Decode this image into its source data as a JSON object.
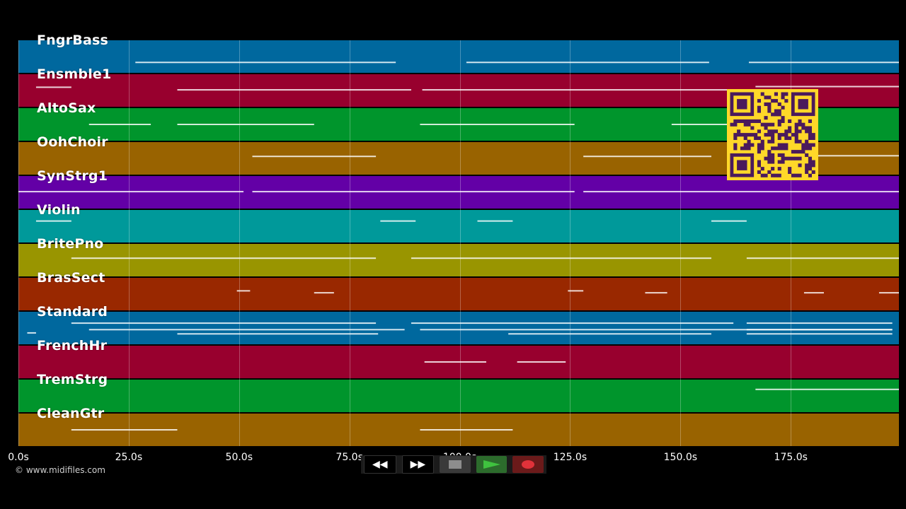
{
  "timeline": {
    "max_seconds": 199.5,
    "ticks": [
      "0.0s",
      "25.0s",
      "50.0s",
      "75.0s",
      "100.0s",
      "125.0s",
      "150.0s",
      "175.0s"
    ],
    "tick_values": [
      0,
      25,
      50,
      75,
      100,
      125,
      150,
      175
    ]
  },
  "tracks": [
    {
      "name": "FngrBass",
      "color": "#00689e"
    },
    {
      "name": "Ensmble1",
      "color": "#98002e"
    },
    {
      "name": "AltoSax",
      "color": "#00952c"
    },
    {
      "name": "OohChoir",
      "color": "#996300"
    },
    {
      "name": "SynStrg1",
      "color": "#6300a6"
    },
    {
      "name": "Violin",
      "color": "#00999a"
    },
    {
      "name": "BritePno",
      "color": "#999500"
    },
    {
      "name": "BrasSect",
      "color": "#992800"
    },
    {
      "name": "Standard",
      "color": "#00689e"
    },
    {
      "name": "FrenchHr",
      "color": "#98002e"
    },
    {
      "name": "TremStrg",
      "color": "#00952c"
    },
    {
      "name": "CleanGtr",
      "color": "#996300"
    }
  ],
  "notes": [
    [
      [
        26.5,
        85.5,
        0.68
      ],
      [
        101.5,
        156.5,
        0.68
      ],
      [
        165.5,
        199.5,
        0.68
      ]
    ],
    [
      [
        4,
        12,
        0.4
      ],
      [
        36,
        89,
        0.48
      ],
      [
        91.5,
        168,
        0.48
      ],
      [
        167,
        199.5,
        0.38
      ]
    ],
    [
      [
        16,
        30,
        0.5
      ],
      [
        36,
        67,
        0.5
      ],
      [
        91,
        126,
        0.5
      ],
      [
        148,
        170,
        0.5
      ]
    ],
    [
      [
        53,
        81,
        0.44
      ],
      [
        128,
        157,
        0.44
      ],
      [
        165,
        199.5,
        0.42
      ]
    ],
    [
      [
        0,
        51,
        0.48
      ],
      [
        53,
        126,
        0.48
      ],
      [
        128,
        199.5,
        0.48
      ]
    ],
    [
      [
        4,
        12,
        0.34
      ],
      [
        82,
        90,
        0.34
      ],
      [
        104,
        112,
        0.34
      ],
      [
        157,
        165,
        0.34
      ]
    ],
    [
      [
        12,
        81,
        0.44
      ],
      [
        89,
        157,
        0.44
      ],
      [
        165,
        199.5,
        0.44
      ]
    ],
    [
      [
        49.5,
        52.5,
        0.4
      ],
      [
        67,
        71.5,
        0.46
      ],
      [
        124.5,
        128,
        0.4
      ],
      [
        142,
        147,
        0.46
      ],
      [
        178,
        182.5,
        0.46
      ],
      [
        195,
        199.5,
        0.46
      ]
    ],
    [
      [
        2,
        4,
        0.65
      ],
      [
        12,
        81,
        0.35
      ],
      [
        16,
        87.5,
        0.55
      ],
      [
        36,
        81.5,
        0.68
      ],
      [
        89,
        162,
        0.35
      ],
      [
        91,
        198,
        0.55
      ],
      [
        111,
        157,
        0.68
      ],
      [
        165,
        198,
        0.35
      ],
      [
        165,
        198,
        0.55
      ],
      [
        165,
        198,
        0.68
      ]
    ],
    [
      [
        92,
        106,
        0.5
      ],
      [
        113,
        124,
        0.5
      ]
    ],
    [
      [
        167,
        199.5,
        0.3
      ]
    ],
    [
      [
        12,
        36,
        0.5
      ],
      [
        91,
        112,
        0.5
      ]
    ]
  ],
  "qr_code": {
    "fg": "#4a1a5c",
    "bg": "#ffd829"
  },
  "copyright": "© www.midifiles.com",
  "transport": {
    "rewind_label": "◀◀",
    "forward_label": "▶▶",
    "stop_icon": "stop-icon",
    "play_icon": "play-icon",
    "record_icon": "record-icon"
  }
}
